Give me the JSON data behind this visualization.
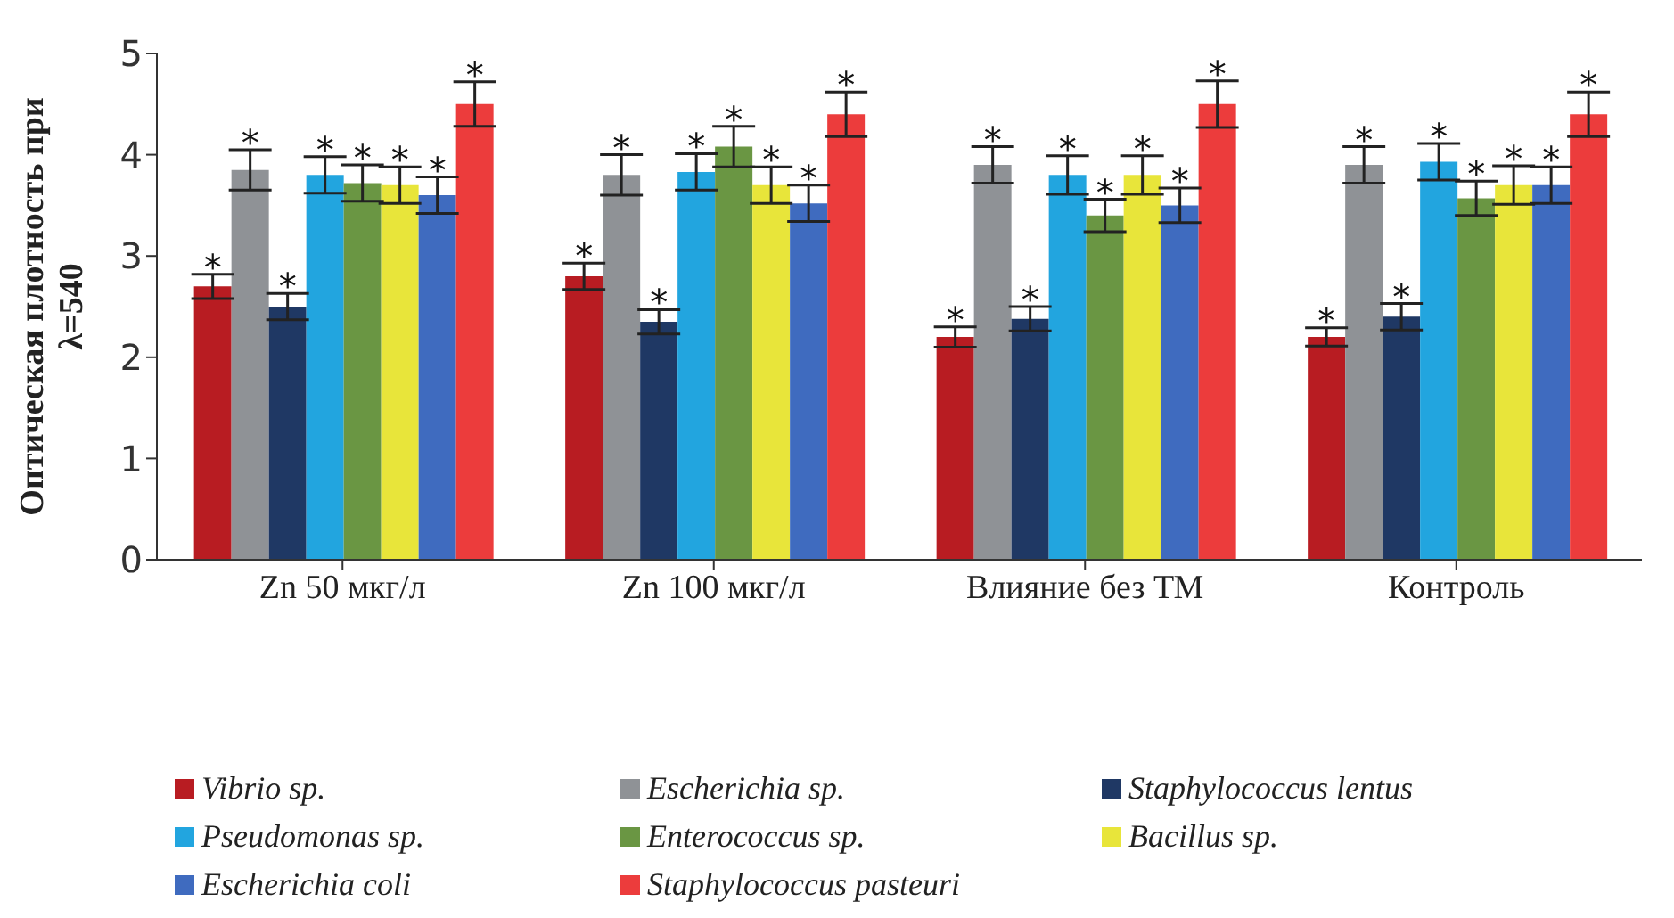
{
  "chart_data": {
    "type": "bar",
    "ylabel": "Оптическая плотность при λ=540",
    "categories": [
      "Zn 50 мкг/л",
      "Zn 100 мкг/л",
      "Влияние без ТМ",
      "Контроль"
    ],
    "ylim": [
      0,
      5
    ],
    "yticks": [
      0,
      1,
      2,
      3,
      4,
      5
    ],
    "grid": false,
    "legend": "bottom",
    "series": [
      {
        "name": "Vibrio sp.",
        "color": "#b81c22",
        "values": [
          2.7,
          2.8,
          2.2,
          2.2
        ],
        "errors": [
          0.12,
          0.13,
          0.1,
          0.09
        ],
        "value_labels": [
          "*",
          "*",
          "*",
          "*"
        ]
      },
      {
        "name": "Escherichia sp.",
        "color": "#8f9296",
        "values": [
          3.85,
          3.8,
          3.9,
          3.9
        ],
        "errors": [
          0.2,
          0.2,
          0.18,
          0.18
        ],
        "value_labels": [
          "*",
          "*",
          "*",
          "*"
        ]
      },
      {
        "name": "Staphylococcus lentus",
        "color": "#1f3864",
        "values": [
          2.5,
          2.35,
          2.38,
          2.4
        ],
        "errors": [
          0.13,
          0.12,
          0.12,
          0.13
        ],
        "value_labels": [
          "*",
          "*",
          "*",
          "*"
        ]
      },
      {
        "name": "Pseudomonas sp.",
        "color": "#22a5df",
        "values": [
          3.8,
          3.83,
          3.8,
          3.93
        ],
        "errors": [
          0.18,
          0.18,
          0.19,
          0.18
        ],
        "value_labels": [
          "*",
          "*",
          "*",
          "*"
        ]
      },
      {
        "name": "Enterococcus sp.",
        "color": "#6a9643",
        "values": [
          3.72,
          4.08,
          3.4,
          3.57
        ],
        "errors": [
          0.18,
          0.2,
          0.16,
          0.17
        ],
        "value_labels": [
          "*",
          "*",
          "*",
          "*"
        ]
      },
      {
        "name": "Bacillus sp.",
        "color": "#e8e53a",
        "values": [
          3.7,
          3.7,
          3.8,
          3.7
        ],
        "errors": [
          0.18,
          0.18,
          0.19,
          0.19
        ],
        "value_labels": [
          "*",
          "*",
          "*",
          "*"
        ]
      },
      {
        "name": "Escherichia coli",
        "color": "#3f6bbf",
        "values": [
          3.6,
          3.52,
          3.5,
          3.7
        ],
        "errors": [
          0.18,
          0.18,
          0.17,
          0.18
        ],
        "value_labels": [
          "*",
          "*",
          "*",
          "*"
        ]
      },
      {
        "name": "Staphylococcus pasteuri",
        "color": "#ec3c3c",
        "values": [
          4.5,
          4.4,
          4.5,
          4.4
        ],
        "errors": [
          0.22,
          0.22,
          0.23,
          0.22
        ],
        "value_labels": [
          "*",
          "*",
          "*",
          "*"
        ]
      }
    ]
  }
}
